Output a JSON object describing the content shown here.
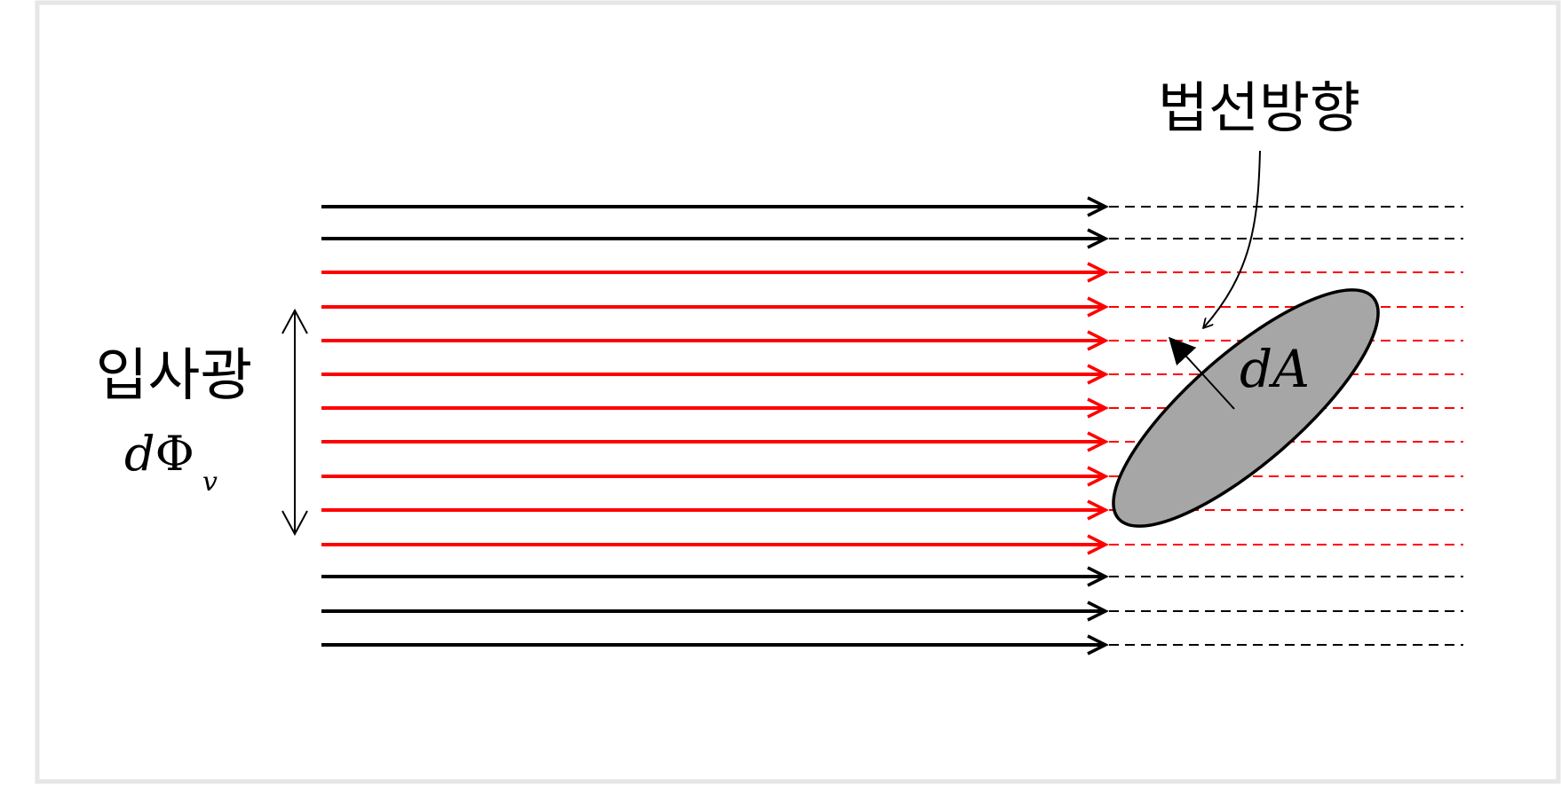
{
  "labels": {
    "normal_direction": "법선방향",
    "incident_light": "입사광",
    "flux_d": "d",
    "flux_phi": "Φ",
    "flux_sub": "v",
    "area": "dA"
  },
  "rays": {
    "colors": [
      "black",
      "black",
      "red",
      "red",
      "red",
      "red",
      "red",
      "red",
      "red",
      "red",
      "red",
      "black",
      "black",
      "black"
    ]
  },
  "colors": {
    "black_ray": "#000000",
    "red_ray": "#ff0000",
    "surface_fill": "#a6a6a6",
    "frame": "#e6e6e6"
  }
}
